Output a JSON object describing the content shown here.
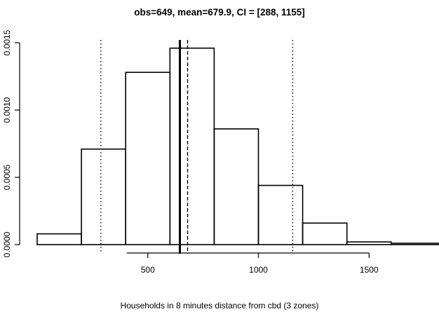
{
  "chart_data": {
    "type": "histogram",
    "title": "obs=649, mean=679.9, CI = [288, 1155]",
    "xlabel": "Households in 8 minutes distance from cbd (3 zones)",
    "ylabel": "",
    "xlim": [
      0,
      1850
    ],
    "ylim": [
      0,
      0.0015
    ],
    "x_ticks": [
      500,
      1000,
      1500
    ],
    "x_tick_labels": [
      "500",
      "1000",
      "1500"
    ],
    "y_ticks": [
      0,
      0.0005,
      0.001,
      0.0015
    ],
    "y_tick_labels": [
      "0.0000",
      "0.0005",
      "0.0010",
      "0.0015"
    ],
    "bins": [
      {
        "x0": 0,
        "x1": 200,
        "density": 8e-05
      },
      {
        "x0": 200,
        "x1": 400,
        "density": 0.00071
      },
      {
        "x0": 400,
        "x1": 600,
        "density": 0.00128
      },
      {
        "x0": 600,
        "x1": 800,
        "density": 0.00146
      },
      {
        "x0": 800,
        "x1": 1000,
        "density": 0.00086
      },
      {
        "x0": 1000,
        "x1": 1200,
        "density": 0.00044
      },
      {
        "x0": 1200,
        "x1": 1400,
        "density": 0.00016
      },
      {
        "x0": 1400,
        "x1": 1600,
        "density": 2e-05
      },
      {
        "x0": 1600,
        "x1": 1850,
        "density": 1e-05
      }
    ],
    "reference_lines": [
      {
        "name": "median",
        "x": 645,
        "style": "solid-thick"
      },
      {
        "name": "mean",
        "x": 679.9,
        "style": "dashed"
      },
      {
        "name": "ci-lower",
        "x": 288,
        "style": "dotted"
      },
      {
        "name": "ci-upper",
        "x": 1155,
        "style": "dotted"
      }
    ],
    "grid": false,
    "legend": "none"
  }
}
